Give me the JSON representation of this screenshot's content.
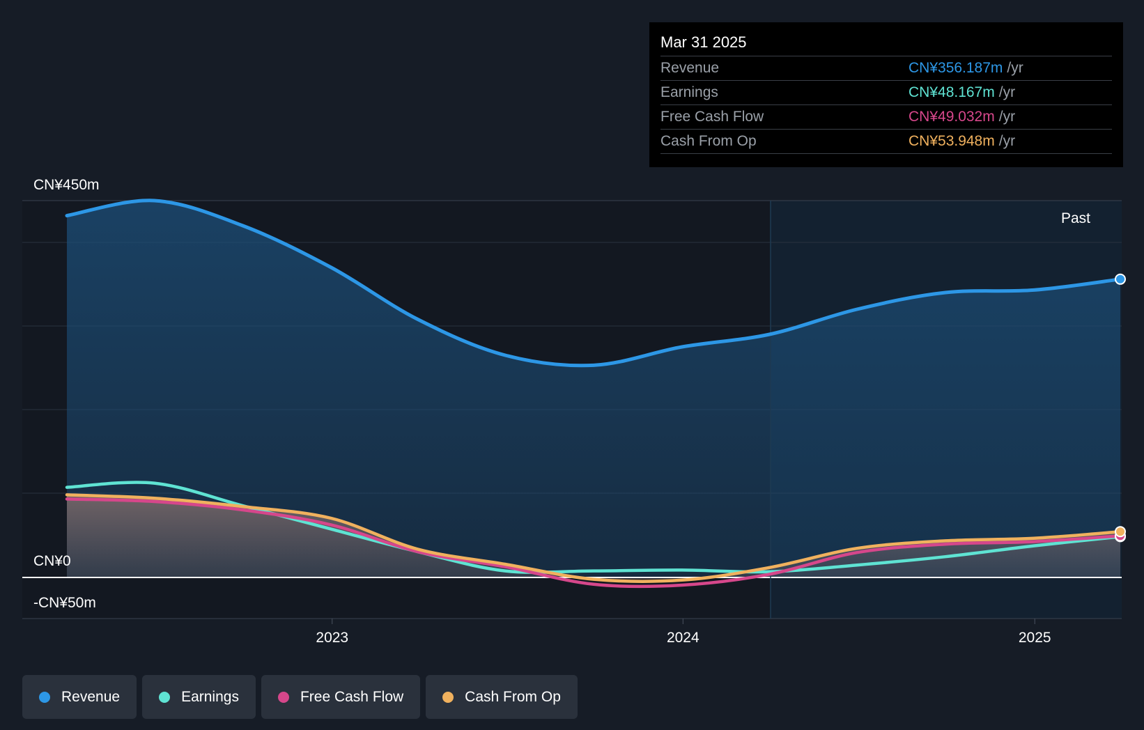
{
  "tooltip": {
    "date": "Mar 31 2025",
    "rows": [
      {
        "label": "Revenue",
        "value": "CN¥356.187m",
        "unit": "/yr",
        "color": "#2d97e6"
      },
      {
        "label": "Earnings",
        "value": "CN¥48.167m",
        "unit": "/yr",
        "color": "#5fe3d3"
      },
      {
        "label": "Free Cash Flow",
        "value": "CN¥49.032m",
        "unit": "/yr",
        "color": "#d6478b"
      },
      {
        "label": "Cash From Op",
        "value": "CN¥53.948m",
        "unit": "/yr",
        "color": "#f0b15e"
      }
    ]
  },
  "legend": [
    {
      "label": "Revenue",
      "color": "#2d97e6"
    },
    {
      "label": "Earnings",
      "color": "#5fe3d3"
    },
    {
      "label": "Free Cash Flow",
      "color": "#d6478b"
    },
    {
      "label": "Cash From Op",
      "color": "#f0b15e"
    }
  ],
  "chart_data": {
    "type": "line",
    "ylim": [
      -50,
      450
    ],
    "y_tick_labels": [
      "CN¥450m",
      "CN¥0",
      "-CN¥50m"
    ],
    "x_tick_labels": [
      "2023",
      "2024",
      "2025"
    ],
    "region_label": "Past",
    "x": [
      "2022-03-31",
      "2022-06-30",
      "2022-09-30",
      "2022-12-31",
      "2023-03-31",
      "2023-06-30",
      "2023-09-30",
      "2023-12-31",
      "2024-03-31",
      "2024-06-30",
      "2024-09-30",
      "2024-12-31",
      "2025-03-31"
    ],
    "series": [
      {
        "name": "Revenue",
        "color": "#2d97e6",
        "values": [
          432,
          450,
          420,
          370,
          308,
          265,
          253,
          275,
          290,
          320,
          340,
          343,
          356
        ]
      },
      {
        "name": "Earnings",
        "color": "#5fe3d3",
        "values": [
          107,
          112,
          85,
          57,
          30,
          7,
          7,
          8,
          6,
          14,
          24,
          37,
          48
        ]
      },
      {
        "name": "Free Cash Flow",
        "color": "#d6478b",
        "values": [
          93,
          90,
          80,
          62,
          30,
          12,
          -9,
          -10,
          3,
          29,
          39,
          42,
          49
        ]
      },
      {
        "name": "Cash From Op",
        "color": "#f0b15e",
        "values": [
          98,
          94,
          84,
          70,
          33,
          15,
          -3,
          -4,
          11,
          34,
          43,
          46,
          54
        ]
      }
    ]
  }
}
